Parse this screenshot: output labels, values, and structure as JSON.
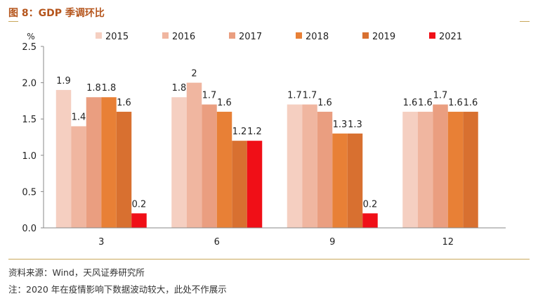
{
  "figure": {
    "title": "图 8：GDP 季调环比",
    "source": "资料来源：Wind，天风证券研究所",
    "note": "注：2020 年在疫情影响下数据波动较大，此处不作展示"
  },
  "chart_data": {
    "type": "bar",
    "title": "",
    "xlabel": "",
    "ylabel": "%",
    "ylim": [
      0,
      2.5
    ],
    "yticks": [
      "0.0",
      "0.5",
      "1.0",
      "1.5",
      "2.0",
      "2.5"
    ],
    "categories": [
      "3",
      "6",
      "9",
      "12"
    ],
    "legend_position": "top",
    "series": [
      {
        "name": "2015",
        "color": "#f5cfc1",
        "values": [
          1.9,
          1.8,
          1.7,
          1.6
        ],
        "labels": [
          "1.9",
          "1.8",
          "1.7",
          "1.6"
        ]
      },
      {
        "name": "2016",
        "color": "#f0b6a0",
        "values": [
          1.4,
          2.0,
          1.7,
          1.6
        ],
        "labels": [
          "1.4",
          "2",
          "1.7",
          "1.6"
        ]
      },
      {
        "name": "2017",
        "color": "#ea9e80",
        "values": [
          1.8,
          1.7,
          1.6,
          1.7
        ],
        "labels": [
          "1.8",
          "1.7",
          "1.6",
          "1.7"
        ]
      },
      {
        "name": "2018",
        "color": "#e88036",
        "values": [
          1.8,
          1.6,
          1.3,
          1.6
        ],
        "labels": [
          "1.8",
          "1.6",
          "1.3",
          "1.6"
        ]
      },
      {
        "name": "2019",
        "color": "#d87030",
        "values": [
          1.6,
          1.2,
          1.3,
          1.6
        ],
        "labels": [
          "1.6",
          "1.2",
          "1.3",
          "1.6"
        ]
      },
      {
        "name": "2021",
        "color": "#f00f17",
        "values": [
          0.2,
          1.2,
          0.2,
          null
        ],
        "labels": [
          "0.2",
          "1.2",
          "0.2",
          null
        ]
      }
    ]
  }
}
